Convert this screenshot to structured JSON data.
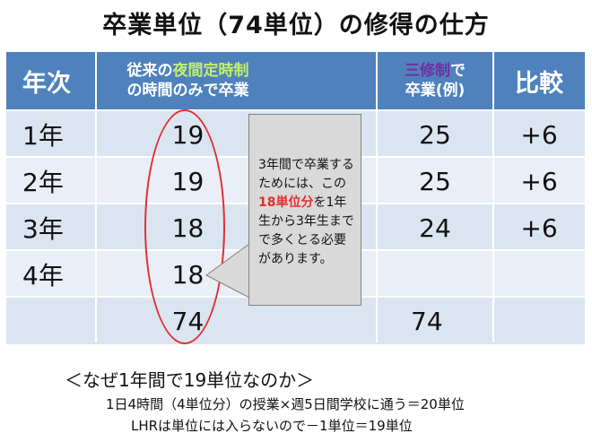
{
  "title": "卒業単位（74単位）の修得の仕方",
  "table": {
    "headers": {
      "year": "年次",
      "former_line1_a": "従来の",
      "former_line1_b": "夜間定時制",
      "former_line2": "の時間のみで卒業",
      "new_line1_a": "三修制",
      "new_line1_b": "で",
      "new_line2": "卒業(例)",
      "diff": "比較"
    },
    "rows": [
      {
        "year": "1年",
        "former": "19",
        "new": "25",
        "diff": "+6"
      },
      {
        "year": "2年",
        "former": "19",
        "new": "25",
        "diff": "+6"
      },
      {
        "year": "3年",
        "former": "18",
        "new": "24",
        "diff": "+6"
      },
      {
        "year": "4年",
        "former": "18",
        "new": "",
        "diff": ""
      }
    ],
    "total": {
      "year": "",
      "former": "74",
      "new": "74",
      "diff": ""
    }
  },
  "callout": {
    "part1": "3年間で卒業するためには、この",
    "highlight": "18単位分",
    "part2": "を1年生から3年生までで多くとる必要があります。"
  },
  "notes": {
    "heading": "＜なぜ1年間で19単位なのか＞",
    "line1": "1日4時間（4単位分）の授業×週5日間学校に通う＝20単位",
    "line2": "LHRは単位には入らないので－1単位＝19単位"
  },
  "colors": {
    "header": "#4f81bd",
    "row": "#dbe5f1",
    "oval": "#e03030",
    "highlight": "#e03030"
  }
}
